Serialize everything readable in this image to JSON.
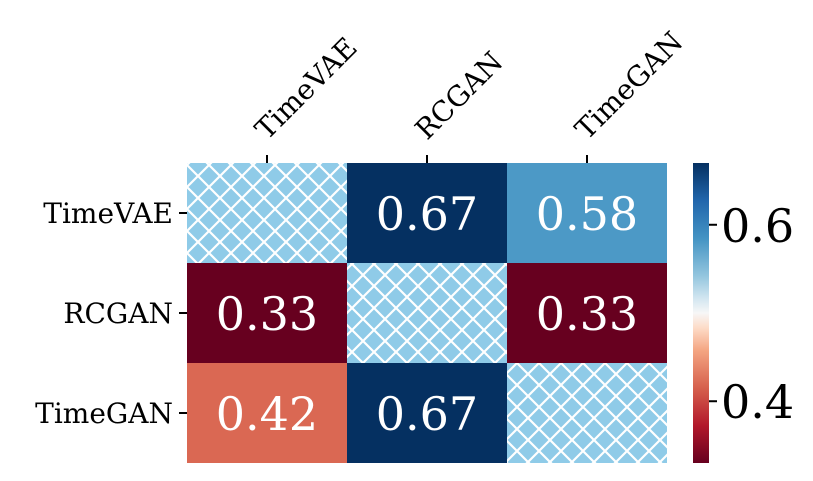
{
  "chart_data": {
    "type": "heatmap",
    "title": "",
    "xlabel": "",
    "ylabel": "",
    "rows": [
      "TimeVAE",
      "RCGAN",
      "TimeGAN"
    ],
    "columns": [
      "TimeVAE",
      "RCGAN",
      "TimeGAN"
    ],
    "values": [
      [
        null,
        0.67,
        0.58
      ],
      [
        0.33,
        null,
        0.33
      ],
      [
        0.42,
        0.67,
        null
      ]
    ],
    "cell_labels": [
      [
        "",
        "0.67",
        "0.58"
      ],
      [
        "0.33",
        "",
        "0.33"
      ],
      [
        "0.42",
        "0.67",
        ""
      ]
    ],
    "masked_cells": "diagonal (hatched)",
    "colormap": "RdBu",
    "vmin": 0.33,
    "vmax": 0.67,
    "colorbar": {
      "ticks": [
        0.4,
        0.6
      ],
      "tick_labels": [
        "0.4",
        "0.6"
      ]
    },
    "colors": {
      "hatch_background": "#8fcbe8",
      "hatch_line": "#ffffff",
      "cell_text": "#ffffff"
    }
  }
}
